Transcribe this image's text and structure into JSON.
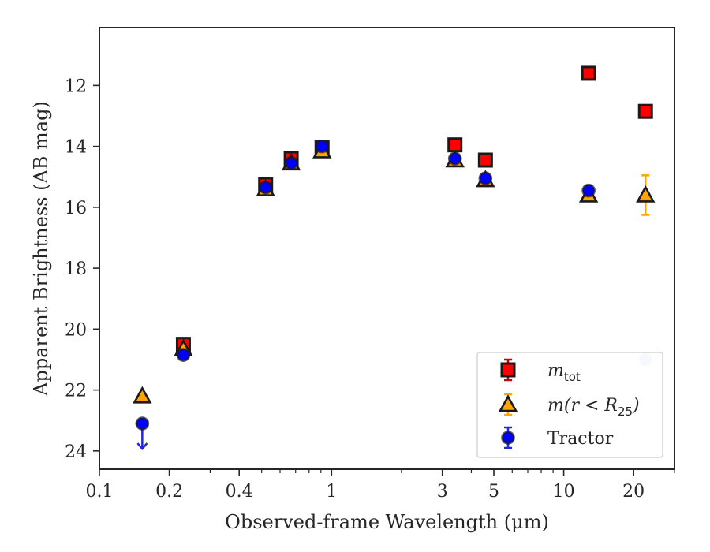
{
  "chart_data": {
    "type": "scatter",
    "xlabel": "Observed-frame Wavelength (μm)",
    "ylabel": "Apparent Brightness (AB mag)",
    "xscale": "log",
    "xlim": [
      0.1,
      30
    ],
    "ylim": [
      24.6,
      10.1
    ],
    "y_inverted": true,
    "xticks": [
      0.1,
      0.2,
      0.4,
      1,
      3,
      5,
      10,
      20
    ],
    "xtick_labels": [
      "0.1",
      "0.2",
      "0.4",
      "1",
      "3",
      "5",
      "10",
      "20"
    ],
    "yticks": [
      12,
      14,
      16,
      18,
      20,
      22,
      24
    ],
    "ytick_labels": [
      "12",
      "14",
      "16",
      "18",
      "20",
      "22",
      "24"
    ],
    "legend_position": "lower-right",
    "series": [
      {
        "name": "m_tot",
        "marker": "square",
        "color": "#ff0000",
        "edge_color": "#1a1a1a",
        "error_color": "#cc0000",
        "x": [
          0.23,
          0.52,
          0.67,
          0.91,
          3.4,
          4.6,
          12.8,
          22.5
        ],
        "y": [
          20.5,
          15.25,
          14.4,
          14.05,
          13.95,
          14.45,
          11.6,
          12.85
        ],
        "yerr": [
          0.12,
          0.12,
          0.1,
          0.05,
          0.05,
          0.05,
          0.05,
          0.05
        ]
      },
      {
        "name": "m(r<R25)",
        "marker": "triangle",
        "color": "#ffa500",
        "edge_color": "#1a1a1a",
        "error_color": "#ffa500",
        "x": [
          0.153,
          0.23,
          0.52,
          0.67,
          0.91,
          3.4,
          4.6,
          12.8,
          22.5
        ],
        "y": [
          22.2,
          20.65,
          15.4,
          14.55,
          14.15,
          14.45,
          15.1,
          15.6,
          15.6
        ],
        "yerr": [
          0.1,
          0.08,
          0.05,
          0.05,
          0.05,
          0.05,
          0.08,
          0.1,
          0.65
        ]
      },
      {
        "name": "Tractor",
        "marker": "circle",
        "color": "#0000ff",
        "edge_color": "#1a1a1a",
        "error_color": "#2222ff",
        "x": [
          0.153,
          0.23,
          0.52,
          0.67,
          0.91,
          3.4,
          4.6,
          12.8
        ],
        "y": [
          23.1,
          20.85,
          15.35,
          14.55,
          14.0,
          14.4,
          15.05,
          15.45
        ],
        "yerr": [
          0,
          0.05,
          0.05,
          0.05,
          0.05,
          0.05,
          0.05,
          0.05
        ],
        "upper_limit": [
          true,
          false,
          false,
          false,
          false,
          false,
          false,
          false
        ],
        "faded_x": [
          22.5
        ],
        "faded_y": [
          21.0
        ]
      }
    ],
    "legend": {
      "entries": [
        {
          "label": "m",
          "sub": "tot",
          "math": true
        },
        {
          "label": "m(r < R",
          "sub": "25",
          "tail": ")",
          "math": true
        },
        {
          "label": "Tractor",
          "math": false
        }
      ]
    }
  }
}
